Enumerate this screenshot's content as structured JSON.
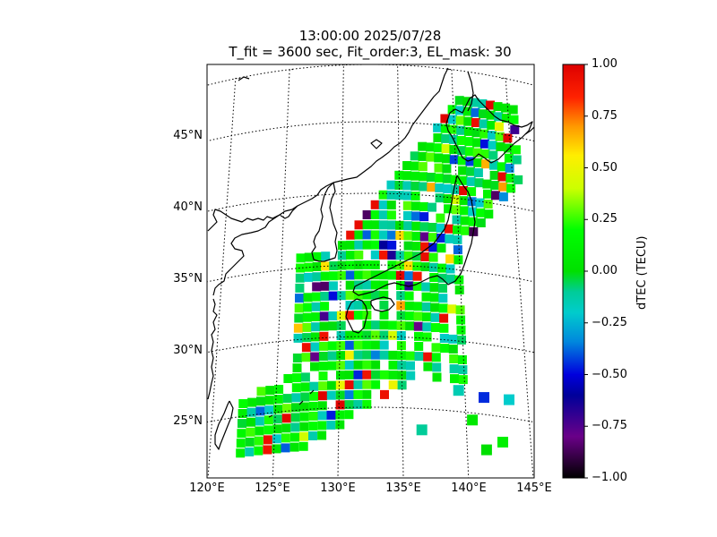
{
  "title": {
    "line1": "13:00:00 2025/07/28",
    "line2": "T_fit = 3600 sec, Fit_order:3, EL_mask: 30"
  },
  "map": {
    "lat_labels": [
      {
        "lat": 45,
        "text": "45°N"
      },
      {
        "lat": 40,
        "text": "40°N"
      },
      {
        "lat": 35,
        "text": "35°N"
      },
      {
        "lat": 30,
        "text": "30°N"
      },
      {
        "lat": 25,
        "text": "25°N"
      }
    ],
    "lon_labels": [
      {
        "lon": 120,
        "text": "120°E"
      },
      {
        "lon": 125,
        "text": "125°E"
      },
      {
        "lon": 130,
        "text": "130°E"
      },
      {
        "lon": 135,
        "text": "135°E"
      },
      {
        "lon": 140,
        "text": "140°E"
      },
      {
        "lon": 145,
        "text": "145°E"
      }
    ],
    "extent": {
      "lon": [
        120,
        145
      ],
      "lat": [
        20,
        49
      ]
    }
  },
  "colorbar": {
    "label": "dTEC (TECU)",
    "range": [
      -1.0,
      1.0
    ],
    "colormap": "nipy_spectral",
    "ticks": [
      {
        "value": 1.0,
        "text": "1.00"
      },
      {
        "value": 0.75,
        "text": "0.75"
      },
      {
        "value": 0.5,
        "text": "0.50"
      },
      {
        "value": 0.25,
        "text": "0.25"
      },
      {
        "value": 0.0,
        "text": "0.00"
      },
      {
        "value": -0.25,
        "text": "−0.25"
      },
      {
        "value": -0.5,
        "text": "−0.50"
      },
      {
        "value": -0.75,
        "text": "−0.75"
      },
      {
        "value": -1.0,
        "text": "−1.00"
      }
    ]
  }
}
